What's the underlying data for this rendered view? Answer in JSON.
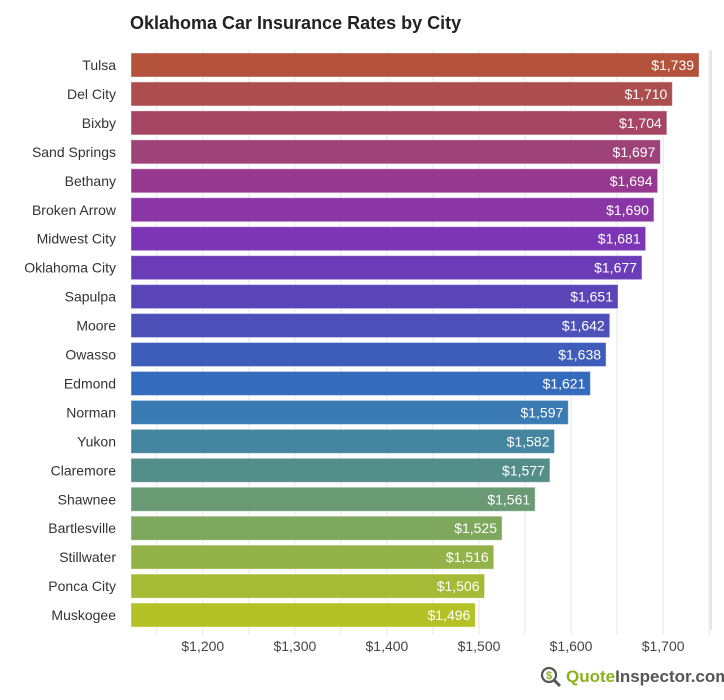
{
  "chart_data": {
    "type": "bar",
    "orientation": "horizontal",
    "title": "Oklahoma Car Insurance Rates by City",
    "categories": [
      "Tulsa",
      "Del City",
      "Bixby",
      "Sand Springs",
      "Bethany",
      "Broken Arrow",
      "Midwest City",
      "Oklahoma City",
      "Sapulpa",
      "Moore",
      "Owasso",
      "Edmond",
      "Norman",
      "Yukon",
      "Claremore",
      "Shawnee",
      "Bartlesville",
      "Stillwater",
      "Ponca City",
      "Muskogee"
    ],
    "values": [
      1739,
      1710,
      1704,
      1697,
      1694,
      1690,
      1681,
      1677,
      1651,
      1642,
      1638,
      1621,
      1597,
      1582,
      1577,
      1561,
      1525,
      1516,
      1506,
      1496
    ],
    "data_labels": [
      "$1,739",
      "$1,710",
      "$1,704",
      "$1,697",
      "$1,694",
      "$1,690",
      "$1,681",
      "$1,677",
      "$1,651",
      "$1,642",
      "$1,638",
      "$1,621",
      "$1,597",
      "$1,582",
      "$1,577",
      "$1,561",
      "$1,525",
      "$1,516",
      "$1,506",
      "$1,496"
    ],
    "colors": [
      "#b5523b",
      "#ad4e4e",
      "#a64563",
      "#9e427a",
      "#96388f",
      "#8a36a6",
      "#7c36b5",
      "#6b3cb8",
      "#5a45b8",
      "#4c50b8",
      "#3e5cba",
      "#356bbd",
      "#3a7bb3",
      "#4486a0",
      "#548e8a",
      "#6a9a74",
      "#7da85e",
      "#93b34a",
      "#a5ba35",
      "#b5c225"
    ],
    "xticks": [
      1200,
      1300,
      1400,
      1500,
      1600,
      1700
    ],
    "xtick_labels": [
      "$1,200",
      "$1,300",
      "$1,400",
      "$1,500",
      "$1,600",
      "$1,700"
    ],
    "xlim": [
      1122,
      1752
    ],
    "grid": true,
    "xlabel": "",
    "ylabel": ""
  },
  "logo": {
    "part1": "Quote",
    "part2": "Inspector.com"
  }
}
